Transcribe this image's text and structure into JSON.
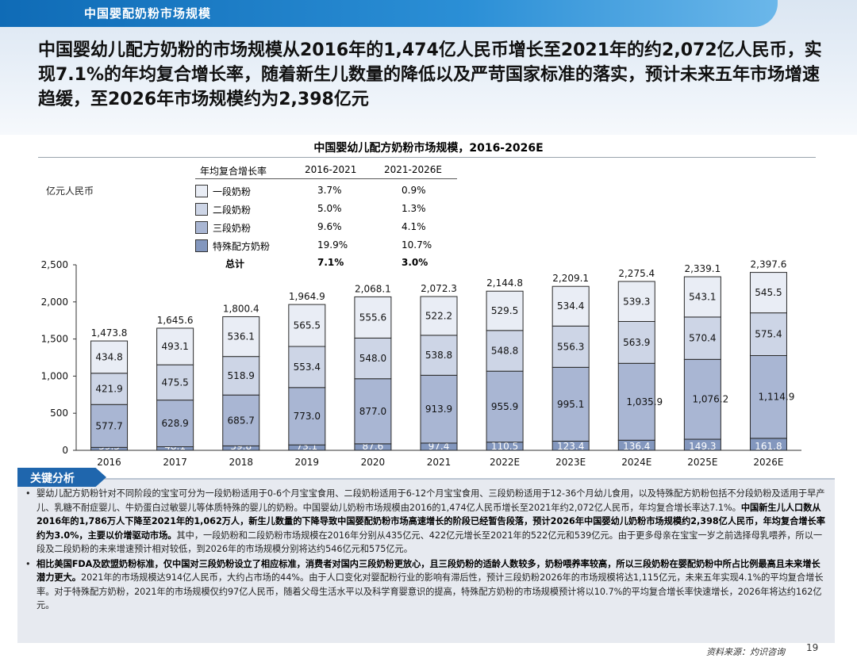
{
  "header": {
    "title": "中国婴配奶粉市场规模"
  },
  "headline": "中国婴幼儿配方奶粉的市场规模从2016年的1,474亿人民币增长至2021年的约2,072亿人民币，实现7.1%的年均复合增长率，随着新生儿数量的降低以及严苛国家标准的落实，预计未来五年市场增速趋缓，至2026年市场规模约为2,398亿元",
  "chart_data": {
    "type": "bar",
    "stacked": true,
    "title": "中国婴幼儿配方奶粉市场规模，2016-2026E",
    "ylabel": "亿元人民币",
    "ylim": [
      0,
      2500
    ],
    "yticks": [
      "0",
      "500",
      "1,000",
      "1,500",
      "2,000",
      "2,500"
    ],
    "categories": [
      "2016",
      "2017",
      "2018",
      "2019",
      "2020",
      "2021",
      "2022E",
      "2023E",
      "2024E",
      "2025E",
      "2026E"
    ],
    "series": [
      {
        "name": "特殊配方奶粉",
        "color": "#8397be",
        "values": [
          39.3,
          48.1,
          59.8,
          73.1,
          87.6,
          97.4,
          110.5,
          123.4,
          136.4,
          149.3,
          161.8
        ],
        "labels": [
          "39.3",
          "48.1",
          "59.8",
          "73.1",
          "87.6",
          "97.4",
          "110.5",
          "123.4",
          "136.4",
          "149.3",
          "161.8"
        ]
      },
      {
        "name": "三段奶粉",
        "color": "#a9b6d3",
        "values": [
          577.7,
          628.9,
          685.7,
          773.0,
          877.0,
          913.9,
          955.9,
          995.1,
          1035.9,
          1076.2,
          1114.9
        ],
        "labels": [
          "577.7",
          "628.9",
          "685.7",
          "773.0",
          "877.0",
          "913.9",
          "955.9",
          "995.1",
          "1,035.9",
          "1,076.2",
          "1,114.9"
        ]
      },
      {
        "name": "二段奶粉",
        "color": "#cdd5e6",
        "values": [
          421.9,
          475.5,
          518.9,
          553.4,
          548.0,
          538.8,
          548.8,
          556.3,
          563.9,
          570.4,
          575.4
        ],
        "labels": [
          "421.9",
          "475.5",
          "518.9",
          "553.4",
          "548.0",
          "538.8",
          "548.8",
          "556.3",
          "563.9",
          "570.4",
          "575.4"
        ]
      },
      {
        "name": "一段奶粉",
        "color": "#e9edf5",
        "values": [
          434.8,
          493.1,
          536.1,
          565.5,
          555.6,
          522.2,
          529.5,
          534.4,
          539.3,
          543.1,
          545.5
        ],
        "labels": [
          "434.8",
          "493.1",
          "536.1",
          "565.5",
          "555.6",
          "522.2",
          "529.5",
          "534.4",
          "539.3",
          "543.1",
          "545.5"
        ]
      }
    ],
    "totals": [
      1473.8,
      1645.6,
      1800.4,
      1964.9,
      2068.1,
      2072.3,
      2144.8,
      2209.1,
      2275.4,
      2339.1,
      2397.6
    ],
    "total_labels": [
      "1,473.8",
      "1,645.6",
      "1,800.4",
      "1,964.9",
      "2,068.1",
      "2,072.3",
      "2,144.8",
      "2,209.1",
      "2,275.4",
      "2,339.1",
      "2,397.6"
    ],
    "legend": {
      "header": {
        "name": "年均复合增长率",
        "col1": "2016-2021",
        "col2": "2021-2026E"
      },
      "rows": [
        {
          "name": "一段奶粉",
          "color": "#e9edf5",
          "cagr1": "3.7%",
          "cagr2": "0.9%"
        },
        {
          "name": "二段奶粉",
          "color": "#cdd5e6",
          "cagr1": "5.0%",
          "cagr2": "1.3%"
        },
        {
          "name": "三段奶粉",
          "color": "#a9b6d3",
          "cagr1": "9.6%",
          "cagr2": "4.1%"
        },
        {
          "name": "特殊配方奶粉",
          "color": "#8397be",
          "cagr1": "19.9%",
          "cagr2": "10.7%"
        }
      ],
      "total": {
        "name": "总计",
        "cagr1": "7.1%",
        "cagr2": "3.0%"
      }
    }
  },
  "analysis": {
    "tab_label": "关键分析",
    "bullets": [
      {
        "normal1": "婴幼儿配方奶粉针对不同阶段的宝宝可分为一段奶粉适用于0-6个月宝宝食用、二段奶粉适用于6-12个月宝宝食用、三段奶粉适用于12-36个月幼儿食用，以及特殊配方奶粉包括不分段奶粉及适用于早产儿、乳糖不耐症婴儿、牛奶蛋白过敏婴儿等体质特殊的婴儿的奶粉。中国婴幼儿奶粉市场规模由2016的1,474亿人民币增长至2021年约2,072亿人民币，年均复合增长率达7.1%。",
        "bold": "中国新生儿人口数从2016年的1,786万人下降至2021年的1,062万人，新生儿数量的下降导致中国婴配奶粉市场高速增长的阶段已经暂告段落，预计2026年中国婴幼儿奶粉市场规模约2,398亿人民币，年均复合增长率约为3.0%，主要以价增驱动市场。",
        "normal2": "其中，一段奶粉和二段奶粉市场规模在2016年分别从435亿元、422亿元增长至2021年的522亿元和539亿元。由于更多母亲在宝宝一岁之前选择母乳喂养，所以一段及二段奶粉的未来增速预计相对较低，到2026年的市场规模分别将达约546亿元和575亿元。"
      },
      {
        "bold": "相比美国FDA及欧盟奶粉标准，仅中国对三段奶粉设立了相应标准，消费者对国内三段奶粉更放心，且三段奶粉的适龄人数较多，奶粉喂养率较高，所以三段奶粉在婴配奶粉中所占比例最高且未来增长潜力更大。",
        "normal1": "2021年的市场规模达914亿人民币，大约占市场的44%。由于人口变化对婴配粉行业的影响有滞后性，预计三段奶粉2026年的市场规模将达1,115亿元，未来五年实现4.1%的平均复合增长率。对于特殊配方奶粉，2021年的市场规模仅约97亿人民币，随着父母生活水平以及科学育婴意识的提高，特殊配方奶粉的市场规模预计将以10.7%的平均复合增长率快速增长，2026年将达约162亿元。"
      }
    ]
  },
  "footer": {
    "source": "资料来源：灼识咨询",
    "page": "19"
  }
}
